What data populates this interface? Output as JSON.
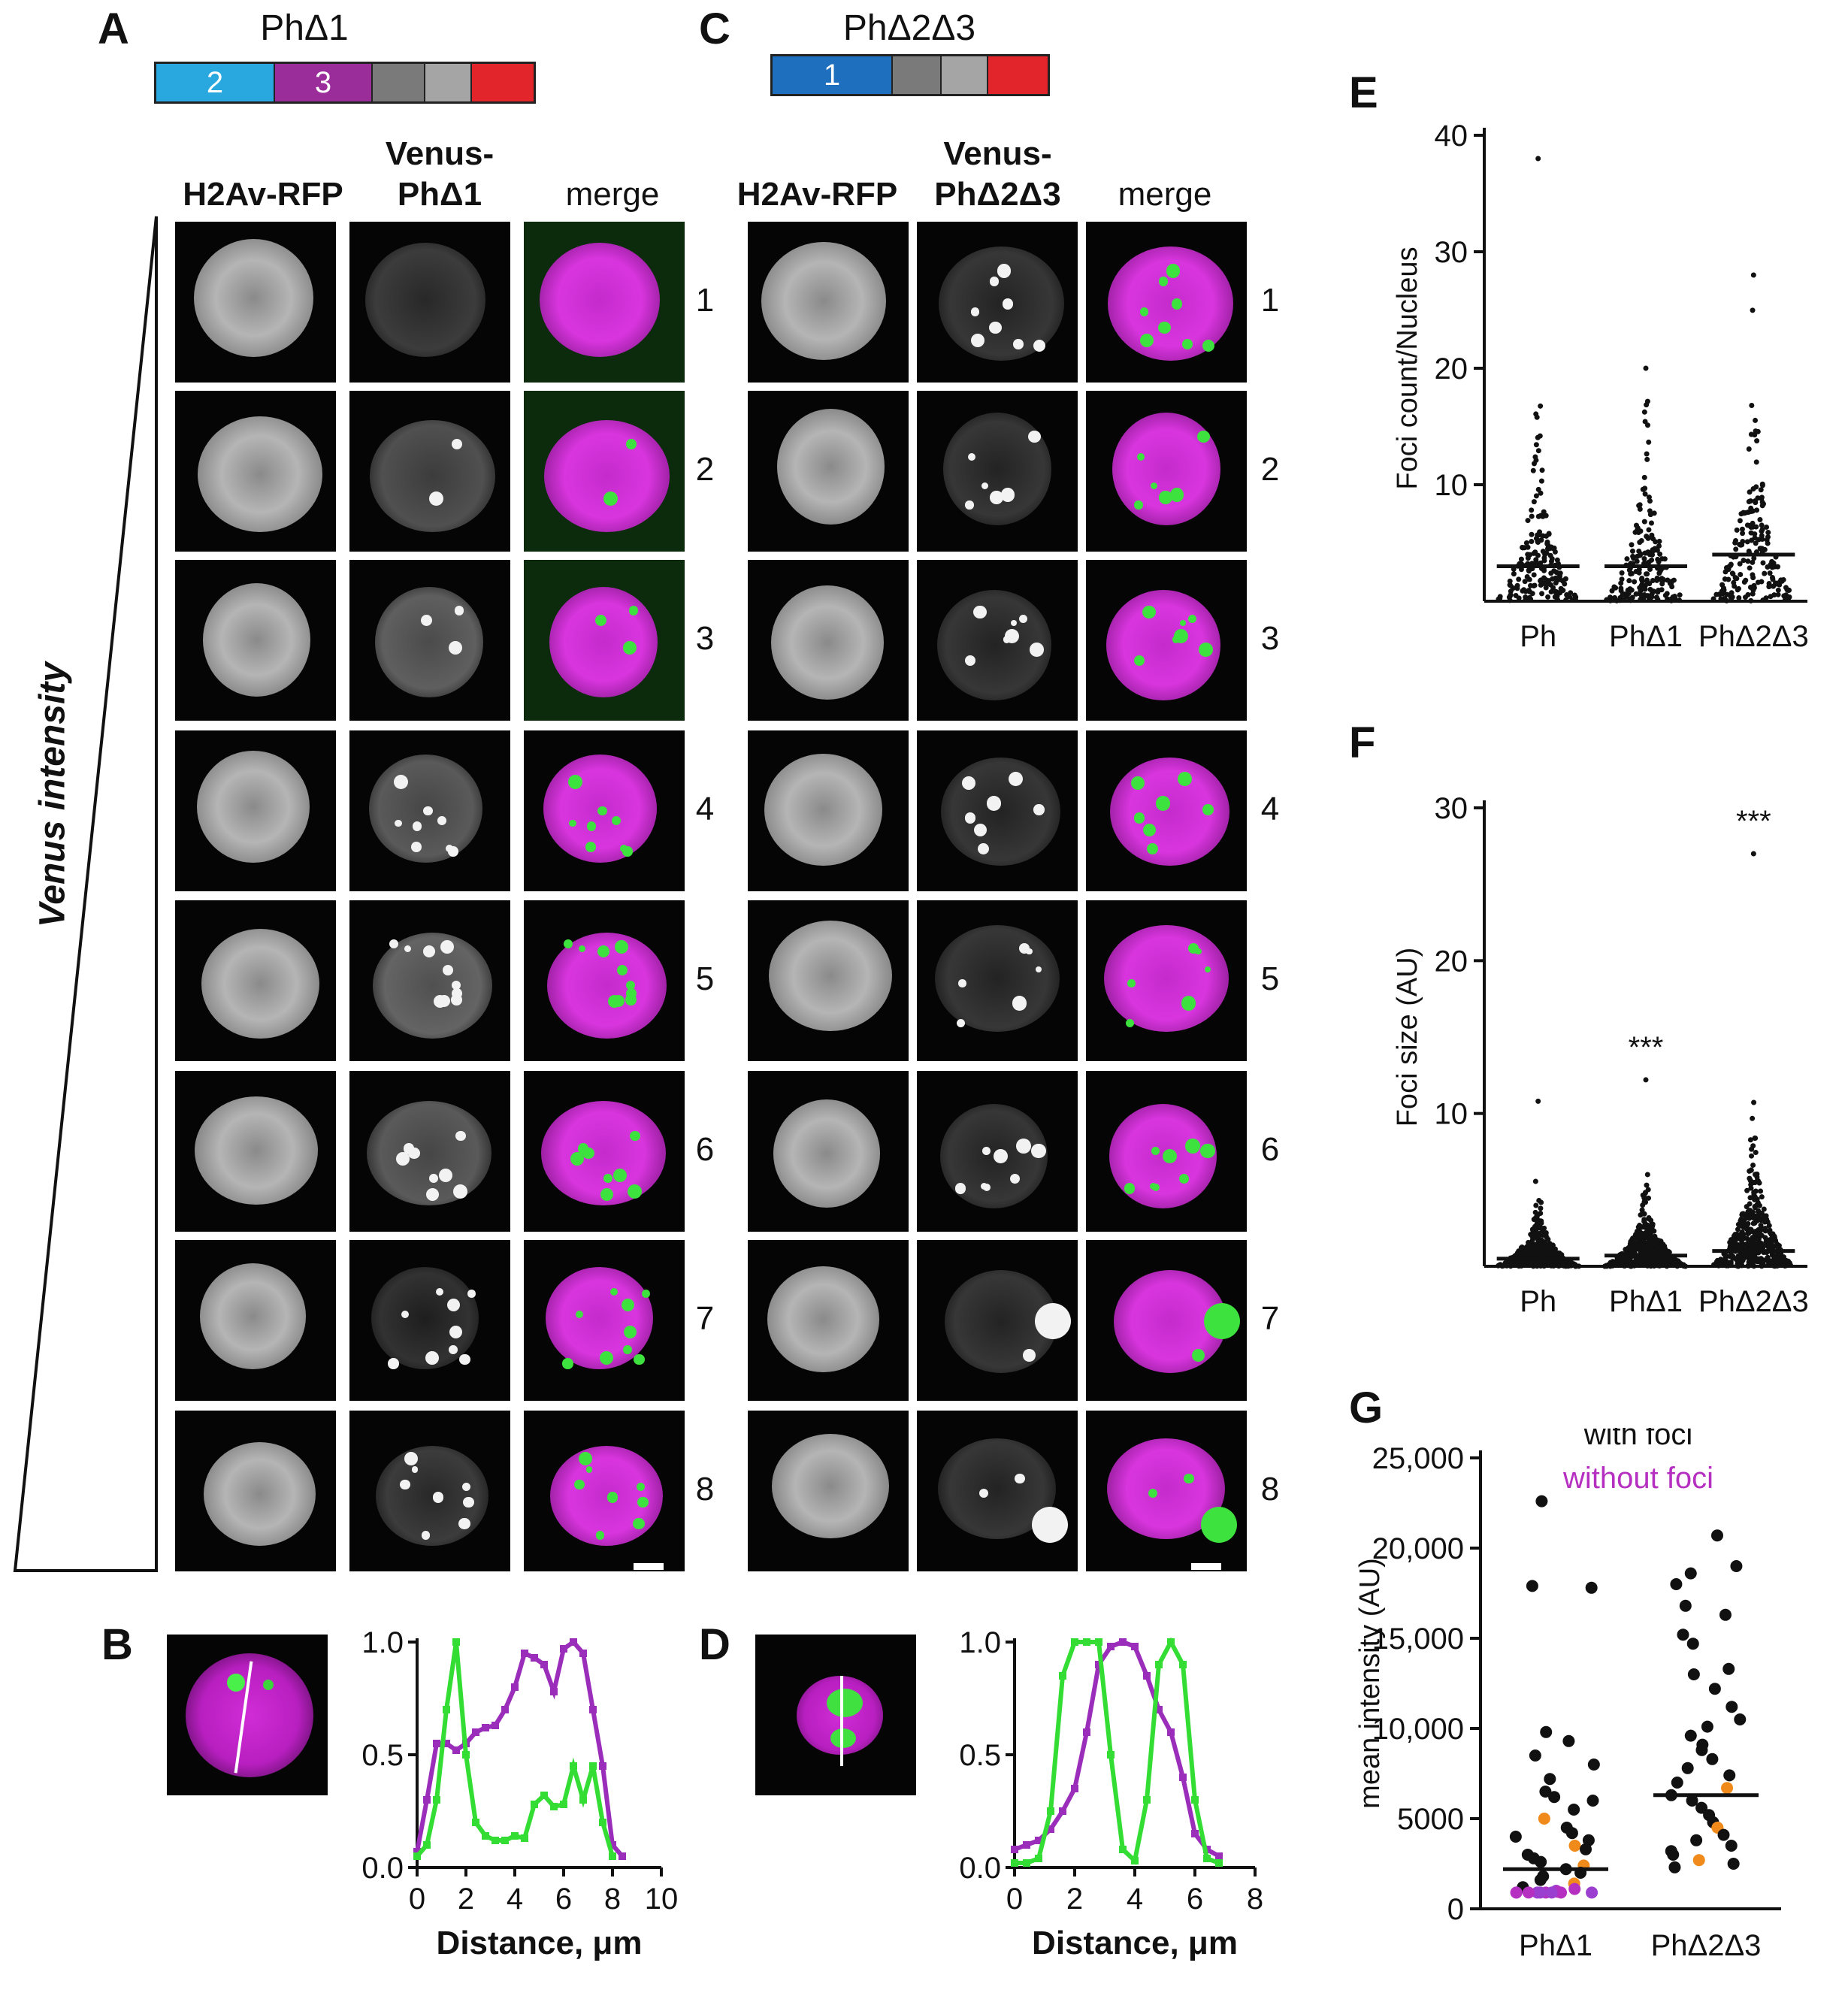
{
  "panels": {
    "A": {
      "letter": "A",
      "construct": "PhΔ1",
      "domains": [
        {
          "label": "2",
          "color": "#29a8e0"
        },
        {
          "label": "3",
          "color": "#9b2d9b"
        },
        {
          "label": "",
          "color": "#7a7a7a"
        },
        {
          "label": "",
          "color": "#a5a5a5"
        },
        {
          "label": "",
          "color": "#e2252b"
        }
      ],
      "col1": "H2Av-RFP",
      "col2a": "Venus-",
      "col2b": "PhΔ1",
      "col3": "merge"
    },
    "B": {
      "letter": "B"
    },
    "C": {
      "letter": "C",
      "construct": "PhΔ2Δ3",
      "domains": [
        {
          "label": "1",
          "color": "#1f6fbf"
        },
        {
          "label": "",
          "color": "#7a7a7a"
        },
        {
          "label": "",
          "color": "#a5a5a5"
        },
        {
          "label": "",
          "color": "#e2252b"
        }
      ],
      "col1": "H2Av-RFP",
      "col2a": "Venus-",
      "col2b": "PhΔ2Δ3",
      "col3": "merge"
    },
    "D": {
      "letter": "D"
    },
    "E": {
      "letter": "E"
    },
    "F": {
      "letter": "F"
    },
    "G": {
      "letter": "G"
    }
  },
  "venus_intensity_label": "Venus intensity",
  "row_numbers": [
    "1",
    "2",
    "3",
    "4",
    "5",
    "6",
    "7",
    "8"
  ],
  "chart_data": [
    {
      "panel": "B",
      "type": "line",
      "xlabel": "Distance, μm",
      "ylabel": "",
      "xlim": [
        0,
        10
      ],
      "ylim": [
        0,
        1
      ],
      "xticks": [
        "0",
        "2",
        "4",
        "6",
        "8",
        "10"
      ],
      "yticks": [
        "0.0",
        "0.5",
        "1.0"
      ],
      "series": [
        {
          "color": "#9b2dbb",
          "x": [
            0,
            0.4,
            0.8,
            1.2,
            1.6,
            2.0,
            2.4,
            2.8,
            3.2,
            3.6,
            4.0,
            4.4,
            4.8,
            5.2,
            5.6,
            6.0,
            6.4,
            6.8,
            7.2,
            7.6,
            8.0,
            8.4
          ],
          "y": [
            0.07,
            0.3,
            0.55,
            0.55,
            0.52,
            0.55,
            0.6,
            0.62,
            0.63,
            0.7,
            0.8,
            0.95,
            0.93,
            0.9,
            0.78,
            0.97,
            1.0,
            0.95,
            0.7,
            0.45,
            0.1,
            0.05
          ]
        },
        {
          "color": "#33dd33",
          "x": [
            0,
            0.4,
            0.8,
            1.2,
            1.6,
            2.0,
            2.4,
            2.8,
            3.2,
            3.6,
            4.0,
            4.4,
            4.8,
            5.2,
            5.6,
            6.0,
            6.4,
            6.8,
            7.2,
            7.6,
            8.0
          ],
          "y": [
            0.05,
            0.1,
            0.3,
            0.7,
            1.0,
            0.5,
            0.2,
            0.14,
            0.12,
            0.12,
            0.14,
            0.13,
            0.28,
            0.32,
            0.27,
            0.28,
            0.45,
            0.3,
            0.45,
            0.2,
            0.05
          ]
        }
      ]
    },
    {
      "panel": "D",
      "type": "line",
      "xlabel": "Distance, μm",
      "ylabel": "",
      "xlim": [
        0,
        8
      ],
      "ylim": [
        0,
        1
      ],
      "xticks": [
        "0",
        "2",
        "4",
        "6",
        "8"
      ],
      "yticks": [
        "0.0",
        "0.5",
        "1.0"
      ],
      "series": [
        {
          "color": "#9b2dbb",
          "x": [
            0,
            0.4,
            0.8,
            1.2,
            1.6,
            2.0,
            2.4,
            2.8,
            3.2,
            3.6,
            4.0,
            4.4,
            4.8,
            5.2,
            5.6,
            6.0,
            6.4,
            6.8
          ],
          "y": [
            0.08,
            0.1,
            0.12,
            0.17,
            0.25,
            0.35,
            0.6,
            0.9,
            0.98,
            1.0,
            0.98,
            0.85,
            0.7,
            0.6,
            0.4,
            0.15,
            0.08,
            0.05
          ]
        },
        {
          "color": "#33dd33",
          "x": [
            0,
            0.4,
            0.8,
            1.2,
            1.6,
            2.0,
            2.4,
            2.8,
            3.2,
            3.6,
            4.0,
            4.4,
            4.8,
            5.2,
            5.6,
            6.0,
            6.4,
            6.8
          ],
          "y": [
            0.02,
            0.02,
            0.04,
            0.25,
            0.85,
            1.0,
            1.0,
            1.0,
            0.5,
            0.08,
            0.03,
            0.3,
            0.9,
            1.0,
            0.9,
            0.3,
            0.04,
            0.02
          ]
        }
      ]
    },
    {
      "panel": "E",
      "type": "scatter",
      "ylabel": "Foci count/Nucleus",
      "ylim": [
        0,
        40
      ],
      "yticks": [
        "10",
        "20",
        "30",
        "40"
      ],
      "categories": [
        "Ph",
        "PhΔ1",
        "PhΔ2Δ3"
      ],
      "medians": [
        3,
        3,
        4
      ],
      "max": [
        38,
        20,
        28
      ]
    },
    {
      "panel": "F",
      "type": "scatter",
      "ylabel": "Foci size (AU)",
      "ylim": [
        0,
        30
      ],
      "yticks": [
        "10",
        "20",
        "30"
      ],
      "categories": [
        "Ph",
        "PhΔ1",
        "PhΔ2Δ3"
      ],
      "medians": [
        0.5,
        0.7,
        1.0
      ],
      "max": [
        10.8,
        12.2,
        27
      ],
      "annotations": [
        "",
        "***",
        "***"
      ]
    },
    {
      "panel": "G",
      "type": "scatter",
      "ylabel": "mean intensity (AU)",
      "ylim": [
        0,
        25000
      ],
      "yticks": [
        "0",
        "5000",
        "10,000",
        "15,000",
        "20,000",
        "25,000"
      ],
      "categories": [
        "PhΔ1",
        "PhΔ2Δ3"
      ],
      "medians": [
        2200,
        6300
      ],
      "legend": [
        {
          "label": "with foci",
          "color": "#111111"
        },
        {
          "label": "without foci",
          "color": "#b52fc0"
        }
      ]
    }
  ]
}
